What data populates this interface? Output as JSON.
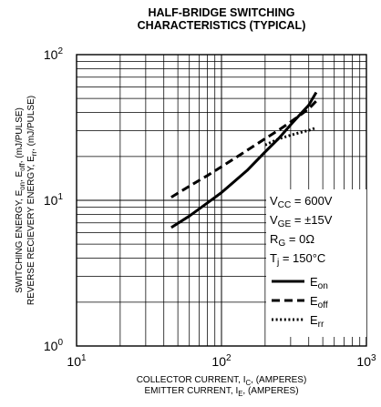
{
  "chart_data": {
    "type": "line",
    "title_lines": [
      "HALF-BRIDGE SWITCHING",
      "CHARACTERISTICS (TYPICAL)"
    ],
    "xlabel_lines": [
      {
        "pre": "COLLECTOR CURRENT, I",
        "sub": "C",
        "post": ", (AMPERES)"
      },
      {
        "pre": "EMITTER CURRENT, I",
        "sub": "E",
        "post": ", (AMPERES)"
      }
    ],
    "ylabel_lines": [
      {
        "segments": [
          [
            "n",
            "SWITCHING ENERGY, E"
          ],
          [
            "s",
            "on"
          ],
          [
            "n",
            ", E"
          ],
          [
            "s",
            "off"
          ],
          [
            "n",
            ", (mJ/PULSE)"
          ]
        ]
      },
      {
        "segments": [
          [
            "n",
            "REVERSE RECIEVERY ENERGY, E"
          ],
          [
            "s",
            "rr"
          ],
          [
            "n",
            ", (mJ/PULSE)"
          ]
        ]
      }
    ],
    "x_scale": "log",
    "y_scale": "log",
    "xlim": [
      10,
      1000
    ],
    "ylim": [
      1,
      100
    ],
    "x_ticks": [
      {
        "base": "10",
        "exp": "1"
      },
      {
        "base": "10",
        "exp": "2"
      },
      {
        "base": "10",
        "exp": "3"
      }
    ],
    "y_ticks": [
      {
        "base": "10",
        "exp": "0"
      },
      {
        "base": "10",
        "exp": "1"
      },
      {
        "base": "10",
        "exp": "2"
      }
    ],
    "grid": true,
    "legend_position": "right",
    "conditions": [
      {
        "segments": [
          [
            "n",
            "V"
          ],
          [
            "s",
            "CC"
          ],
          [
            "n",
            " = 600V"
          ]
        ]
      },
      {
        "segments": [
          [
            "n",
            "V"
          ],
          [
            "s",
            "GE"
          ],
          [
            "n",
            " = ±15V"
          ]
        ]
      },
      {
        "segments": [
          [
            "n",
            "R"
          ],
          [
            "s",
            "G"
          ],
          [
            "n",
            " = 0Ω"
          ]
        ]
      },
      {
        "segments": [
          [
            "n",
            "T"
          ],
          [
            "s",
            "j"
          ],
          [
            "n",
            " = 150°C"
          ]
        ]
      }
    ],
    "series": [
      {
        "name": "E",
        "sub": "on",
        "style": "solid",
        "color": "#000000",
        "x": [
          45,
          60,
          80,
          100,
          150,
          200,
          250,
          300,
          350,
          400,
          450
        ],
        "y": [
          6.5,
          7.8,
          9.6,
          11.3,
          16.0,
          21.5,
          26.8,
          33.0,
          39.0,
          45.0,
          55.0
        ]
      },
      {
        "name": "E",
        "sub": "off",
        "style": "dashed",
        "color": "#000000",
        "x": [
          45,
          60,
          80,
          100,
          150,
          200,
          250,
          300,
          350,
          400,
          450
        ],
        "y": [
          10.5,
          12.5,
          14.8,
          17.0,
          22.0,
          26.5,
          30.5,
          34.5,
          38.5,
          42.5,
          48.0
        ]
      },
      {
        "name": "E",
        "sub": "rr",
        "style": "dotted",
        "color": "#000000",
        "x": [
          200,
          250,
          300,
          350,
          400,
          450
        ],
        "y": [
          24.0,
          26.5,
          28.0,
          29.2,
          30.2,
          31.5
        ]
      }
    ]
  }
}
